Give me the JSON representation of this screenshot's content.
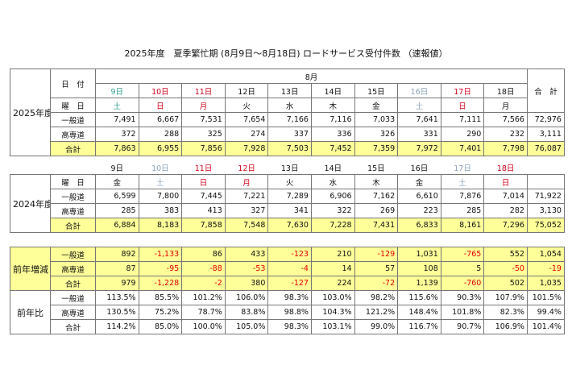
{
  "title": "2025年度　夏季繁忙期 (8月9日～8月18日) ロードサービス受付件数 （速報値）",
  "section_2025": {
    "label": "2025年度",
    "date_header": "日　付",
    "month": "8月",
    "total_header": "合　計",
    "days": [
      "9日",
      "10日",
      "11日",
      "12日",
      "13日",
      "14日",
      "15日",
      "16日",
      "17日",
      "18日"
    ],
    "day_colors": [
      "#2e9e8e",
      "#d0021b",
      "#d0021b",
      "#111",
      "#111",
      "#111",
      "#111",
      "#8aa0b8",
      "#d0021b",
      "#111"
    ],
    "weekday_header": "曜　日",
    "weekdays": [
      "土",
      "日",
      "月",
      "火",
      "水",
      "木",
      "金",
      "土",
      "日",
      "月"
    ],
    "rows": [
      {
        "name": "一般道",
        "values": [
          "7,491",
          "6,667",
          "7,531",
          "7,654",
          "7,166",
          "7,116",
          "7,033",
          "7,641",
          "7,111",
          "7,566"
        ],
        "total": "72,976"
      },
      {
        "name": "高専道",
        "values": [
          "372",
          "288",
          "325",
          "274",
          "337",
          "336",
          "326",
          "331",
          "290",
          "232"
        ],
        "total": "3,111"
      },
      {
        "name": "合計",
        "values": [
          "7,863",
          "6,955",
          "7,856",
          "7,928",
          "7,503",
          "7,452",
          "7,359",
          "7,972",
          "7,401",
          "7,798"
        ],
        "total": "76,087"
      }
    ]
  },
  "section_2024": {
    "label": "2024年度",
    "days": [
      "9日",
      "10日",
      "11日",
      "12日",
      "13日",
      "14日",
      "15日",
      "16日",
      "17日",
      "18日"
    ],
    "day_colors": [
      "#111",
      "#8aa0b8",
      "#d0021b",
      "#d0021b",
      "#111",
      "#111",
      "#111",
      "#111",
      "#8aa0b8",
      "#d0021b"
    ],
    "weekday_header": "曜　日",
    "weekdays": [
      "金",
      "土",
      "日",
      "月",
      "火",
      "水",
      "木",
      "金",
      "土",
      "日"
    ],
    "rows": [
      {
        "name": "一般道",
        "values": [
          "6,599",
          "7,800",
          "7,445",
          "7,221",
          "7,289",
          "6,906",
          "7,162",
          "6,610",
          "7,876",
          "7,014"
        ],
        "total": "71,922"
      },
      {
        "name": "高専道",
        "values": [
          "285",
          "383",
          "413",
          "327",
          "341",
          "322",
          "269",
          "223",
          "285",
          "282"
        ],
        "total": "3,130"
      },
      {
        "name": "合計",
        "values": [
          "6,884",
          "8,183",
          "7,858",
          "7,548",
          "7,630",
          "7,228",
          "7,431",
          "6,833",
          "8,161",
          "7,296"
        ],
        "total": "75,052"
      }
    ]
  },
  "diff": {
    "label": "前年増減",
    "rows": [
      {
        "name": "一般道",
        "values": [
          "892",
          "-1,133",
          "86",
          "433",
          "-123",
          "210",
          "-129",
          "1,031",
          "-765",
          "552"
        ],
        "total": "1,054"
      },
      {
        "name": "高専道",
        "values": [
          "87",
          "-95",
          "-88",
          "-53",
          "-4",
          "14",
          "57",
          "108",
          "5",
          "-50"
        ],
        "total": "-19"
      },
      {
        "name": "合計",
        "values": [
          "979",
          "-1,228",
          "-2",
          "380",
          "-127",
          "224",
          "-72",
          "1,139",
          "-760",
          "502"
        ],
        "total": "1,035"
      }
    ]
  },
  "ratio": {
    "label": "前年比",
    "rows": [
      {
        "name": "一般道",
        "values": [
          "113.5%",
          "85.5%",
          "101.2%",
          "106.0%",
          "98.3%",
          "103.0%",
          "98.2%",
          "115.6%",
          "90.3%",
          "107.9%"
        ],
        "total": "101.5%"
      },
      {
        "name": "高専道",
        "values": [
          "130.5%",
          "75.2%",
          "78.7%",
          "83.8%",
          "98.8%",
          "104.3%",
          "121.2%",
          "148.4%",
          "101.8%",
          "82.3%"
        ],
        "total": "99.4%"
      },
      {
        "name": "合計",
        "values": [
          "114.2%",
          "85.0%",
          "100.0%",
          "105.0%",
          "98.3%",
          "103.1%",
          "99.0%",
          "116.7%",
          "90.7%",
          "106.9%"
        ],
        "total": "101.4%"
      }
    ]
  }
}
